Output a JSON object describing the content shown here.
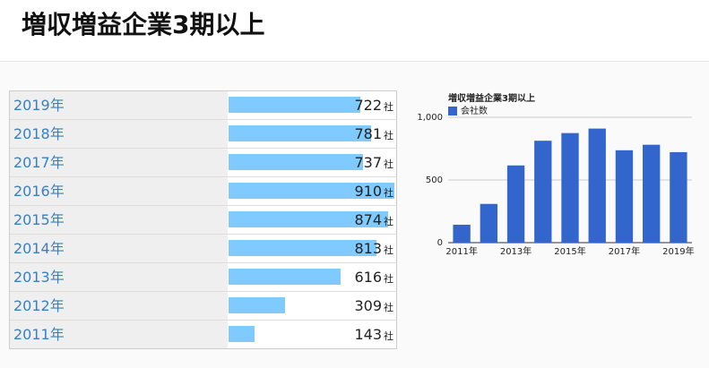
{
  "header": {
    "title": "増収増益企業3期以上"
  },
  "table": {
    "unit": "社",
    "color": "#7fcbff",
    "rows": [
      {
        "year": "2019年",
        "value": 722
      },
      {
        "year": "2018年",
        "value": 781
      },
      {
        "year": "2017年",
        "value": 737
      },
      {
        "year": "2016年",
        "value": 910
      },
      {
        "year": "2015年",
        "value": 874
      },
      {
        "year": "2014年",
        "value": 813
      },
      {
        "year": "2013年",
        "value": 616
      },
      {
        "year": "2012年",
        "value": 309
      },
      {
        "year": "2011年",
        "value": 143
      }
    ]
  },
  "chart_data": {
    "type": "bar",
    "title": "増収増益企業3期以上",
    "categories": [
      "2011年",
      null,
      "2013年",
      null,
      "2015年",
      null,
      "2017年",
      null,
      "2019年"
    ],
    "series": [
      {
        "name": "会社数",
        "color": "#3366cc",
        "values": [
          143,
          309,
          616,
          813,
          874,
          910,
          737,
          781,
          722
        ]
      }
    ],
    "ylim": [
      0,
      1000
    ],
    "yticks": [
      0,
      500,
      {
        "value": 1000,
        "label": "1,000"
      }
    ],
    "grid": true
  }
}
